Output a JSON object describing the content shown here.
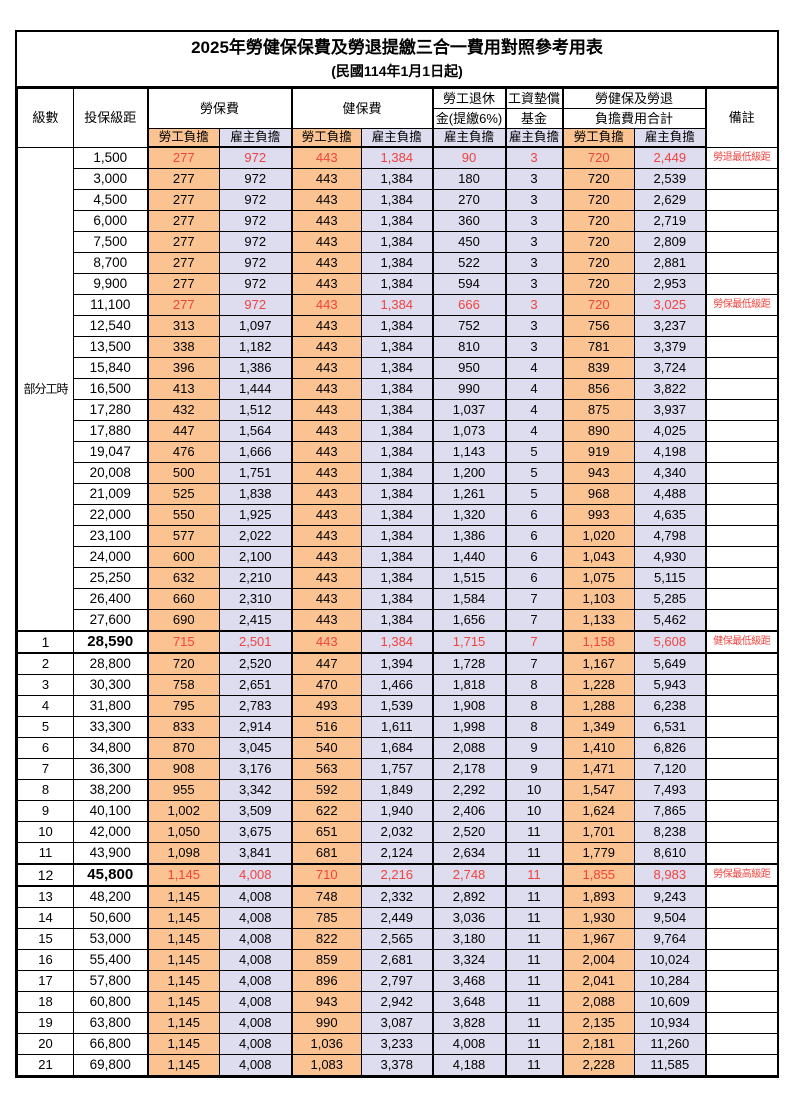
{
  "title": "2025年勞健保保費及勞退提繳三合一費用對照參考用表",
  "subtitle": "(民國114年1月1日起)",
  "header": {
    "level": "級數",
    "bracket": "投保級距",
    "labor": "勞保費",
    "health": "健保費",
    "pension_l1": "勞工退休",
    "pension_l2": "金(提繳6%)",
    "wage_l1": "工資墊償",
    "wage_l2": "基金",
    "total_l1": "勞健保及勞退",
    "total_l2": "負擔費用合計",
    "note": "備註",
    "employee": "勞工負擔",
    "employer": "雇主負擔"
  },
  "part_time": {
    "label": "部分工時",
    "rowspan": 23
  },
  "colors": {
    "employee_bg": "#FAC391",
    "employer_bg": "#DEDCEF",
    "highlight_text": "#F0433E",
    "border": "#000000"
  },
  "rows": [
    {
      "level": "",
      "bracket": "1,500",
      "values": [
        "277",
        "972",
        "443",
        "1,384",
        "90",
        "3",
        "720",
        "2,449"
      ],
      "note": "勞退最低級距",
      "highlight": true,
      "emphasis": false
    },
    {
      "level": "",
      "bracket": "3,000",
      "values": [
        "277",
        "972",
        "443",
        "1,384",
        "180",
        "3",
        "720",
        "2,539"
      ],
      "note": "",
      "highlight": false,
      "emphasis": false
    },
    {
      "level": "",
      "bracket": "4,500",
      "values": [
        "277",
        "972",
        "443",
        "1,384",
        "270",
        "3",
        "720",
        "2,629"
      ],
      "note": "",
      "highlight": false,
      "emphasis": false
    },
    {
      "level": "",
      "bracket": "6,000",
      "values": [
        "277",
        "972",
        "443",
        "1,384",
        "360",
        "3",
        "720",
        "2,719"
      ],
      "note": "",
      "highlight": false,
      "emphasis": false
    },
    {
      "level": "",
      "bracket": "7,500",
      "values": [
        "277",
        "972",
        "443",
        "1,384",
        "450",
        "3",
        "720",
        "2,809"
      ],
      "note": "",
      "highlight": false,
      "emphasis": false
    },
    {
      "level": "",
      "bracket": "8,700",
      "values": [
        "277",
        "972",
        "443",
        "1,384",
        "522",
        "3",
        "720",
        "2,881"
      ],
      "note": "",
      "highlight": false,
      "emphasis": false
    },
    {
      "level": "",
      "bracket": "9,900",
      "values": [
        "277",
        "972",
        "443",
        "1,384",
        "594",
        "3",
        "720",
        "2,953"
      ],
      "note": "",
      "highlight": false,
      "emphasis": false
    },
    {
      "level": "",
      "bracket": "11,100",
      "values": [
        "277",
        "972",
        "443",
        "1,384",
        "666",
        "3",
        "720",
        "3,025"
      ],
      "note": "勞保最低級距",
      "highlight": true,
      "emphasis": false
    },
    {
      "level": "",
      "bracket": "12,540",
      "values": [
        "313",
        "1,097",
        "443",
        "1,384",
        "752",
        "3",
        "756",
        "3,237"
      ],
      "note": "",
      "highlight": false,
      "emphasis": false
    },
    {
      "level": "",
      "bracket": "13,500",
      "values": [
        "338",
        "1,182",
        "443",
        "1,384",
        "810",
        "3",
        "781",
        "3,379"
      ],
      "note": "",
      "highlight": false,
      "emphasis": false
    },
    {
      "level": "",
      "bracket": "15,840",
      "values": [
        "396",
        "1,386",
        "443",
        "1,384",
        "950",
        "4",
        "839",
        "3,724"
      ],
      "note": "",
      "highlight": false,
      "emphasis": false
    },
    {
      "level": "",
      "bracket": "16,500",
      "values": [
        "413",
        "1,444",
        "443",
        "1,384",
        "990",
        "4",
        "856",
        "3,822"
      ],
      "note": "",
      "highlight": false,
      "emphasis": false
    },
    {
      "level": "",
      "bracket": "17,280",
      "values": [
        "432",
        "1,512",
        "443",
        "1,384",
        "1,037",
        "4",
        "875",
        "3,937"
      ],
      "note": "",
      "highlight": false,
      "emphasis": false
    },
    {
      "level": "",
      "bracket": "17,880",
      "values": [
        "447",
        "1,564",
        "443",
        "1,384",
        "1,073",
        "4",
        "890",
        "4,025"
      ],
      "note": "",
      "highlight": false,
      "emphasis": false
    },
    {
      "level": "",
      "bracket": "19,047",
      "values": [
        "476",
        "1,666",
        "443",
        "1,384",
        "1,143",
        "5",
        "919",
        "4,198"
      ],
      "note": "",
      "highlight": false,
      "emphasis": false
    },
    {
      "level": "",
      "bracket": "20,008",
      "values": [
        "500",
        "1,751",
        "443",
        "1,384",
        "1,200",
        "5",
        "943",
        "4,340"
      ],
      "note": "",
      "highlight": false,
      "emphasis": false
    },
    {
      "level": "",
      "bracket": "21,009",
      "values": [
        "525",
        "1,838",
        "443",
        "1,384",
        "1,261",
        "5",
        "968",
        "4,488"
      ],
      "note": "",
      "highlight": false,
      "emphasis": false
    },
    {
      "level": "",
      "bracket": "22,000",
      "values": [
        "550",
        "1,925",
        "443",
        "1,384",
        "1,320",
        "6",
        "993",
        "4,635"
      ],
      "note": "",
      "highlight": false,
      "emphasis": false
    },
    {
      "level": "",
      "bracket": "23,100",
      "values": [
        "577",
        "2,022",
        "443",
        "1,384",
        "1,386",
        "6",
        "1,020",
        "4,798"
      ],
      "note": "",
      "highlight": false,
      "emphasis": false
    },
    {
      "level": "",
      "bracket": "24,000",
      "values": [
        "600",
        "2,100",
        "443",
        "1,384",
        "1,440",
        "6",
        "1,043",
        "4,930"
      ],
      "note": "",
      "highlight": false,
      "emphasis": false
    },
    {
      "level": "",
      "bracket": "25,250",
      "values": [
        "632",
        "2,210",
        "443",
        "1,384",
        "1,515",
        "6",
        "1,075",
        "5,115"
      ],
      "note": "",
      "highlight": false,
      "emphasis": false
    },
    {
      "level": "",
      "bracket": "26,400",
      "values": [
        "660",
        "2,310",
        "443",
        "1,384",
        "1,584",
        "7",
        "1,103",
        "5,285"
      ],
      "note": "",
      "highlight": false,
      "emphasis": false
    },
    {
      "level": "",
      "bracket": "27,600",
      "values": [
        "690",
        "2,415",
        "443",
        "1,384",
        "1,656",
        "7",
        "1,133",
        "5,462"
      ],
      "note": "",
      "highlight": false,
      "emphasis": false
    },
    {
      "level": "1",
      "bracket": "28,590",
      "values": [
        "715",
        "2,501",
        "443",
        "1,384",
        "1,715",
        "7",
        "1,158",
        "5,608"
      ],
      "note": "健保最低級距",
      "highlight": true,
      "emphasis": true
    },
    {
      "level": "2",
      "bracket": "28,800",
      "values": [
        "720",
        "2,520",
        "447",
        "1,394",
        "1,728",
        "7",
        "1,167",
        "5,649"
      ],
      "note": "",
      "highlight": false,
      "emphasis": false
    },
    {
      "level": "3",
      "bracket": "30,300",
      "values": [
        "758",
        "2,651",
        "470",
        "1,466",
        "1,818",
        "8",
        "1,228",
        "5,943"
      ],
      "note": "",
      "highlight": false,
      "emphasis": false
    },
    {
      "level": "4",
      "bracket": "31,800",
      "values": [
        "795",
        "2,783",
        "493",
        "1,539",
        "1,908",
        "8",
        "1,288",
        "6,238"
      ],
      "note": "",
      "highlight": false,
      "emphasis": false
    },
    {
      "level": "5",
      "bracket": "33,300",
      "values": [
        "833",
        "2,914",
        "516",
        "1,611",
        "1,998",
        "8",
        "1,349",
        "6,531"
      ],
      "note": "",
      "highlight": false,
      "emphasis": false
    },
    {
      "level": "6",
      "bracket": "34,800",
      "values": [
        "870",
        "3,045",
        "540",
        "1,684",
        "2,088",
        "9",
        "1,410",
        "6,826"
      ],
      "note": "",
      "highlight": false,
      "emphasis": false
    },
    {
      "level": "7",
      "bracket": "36,300",
      "values": [
        "908",
        "3,176",
        "563",
        "1,757",
        "2,178",
        "9",
        "1,471",
        "7,120"
      ],
      "note": "",
      "highlight": false,
      "emphasis": false
    },
    {
      "level": "8",
      "bracket": "38,200",
      "values": [
        "955",
        "3,342",
        "592",
        "1,849",
        "2,292",
        "10",
        "1,547",
        "7,493"
      ],
      "note": "",
      "highlight": false,
      "emphasis": false
    },
    {
      "level": "9",
      "bracket": "40,100",
      "values": [
        "1,002",
        "3,509",
        "622",
        "1,940",
        "2,406",
        "10",
        "1,624",
        "7,865"
      ],
      "note": "",
      "highlight": false,
      "emphasis": false
    },
    {
      "level": "10",
      "bracket": "42,000",
      "values": [
        "1,050",
        "3,675",
        "651",
        "2,032",
        "2,520",
        "11",
        "1,701",
        "8,238"
      ],
      "note": "",
      "highlight": false,
      "emphasis": false
    },
    {
      "level": "11",
      "bracket": "43,900",
      "values": [
        "1,098",
        "3,841",
        "681",
        "2,124",
        "2,634",
        "11",
        "1,779",
        "8,610"
      ],
      "note": "",
      "highlight": false,
      "emphasis": false
    },
    {
      "level": "12",
      "bracket": "45,800",
      "values": [
        "1,145",
        "4,008",
        "710",
        "2,216",
        "2,748",
        "11",
        "1,855",
        "8,983"
      ],
      "note": "勞保最高級距",
      "highlight": true,
      "emphasis": true
    },
    {
      "level": "13",
      "bracket": "48,200",
      "values": [
        "1,145",
        "4,008",
        "748",
        "2,332",
        "2,892",
        "11",
        "1,893",
        "9,243"
      ],
      "note": "",
      "highlight": false,
      "emphasis": false
    },
    {
      "level": "14",
      "bracket": "50,600",
      "values": [
        "1,145",
        "4,008",
        "785",
        "2,449",
        "3,036",
        "11",
        "1,930",
        "9,504"
      ],
      "note": "",
      "highlight": false,
      "emphasis": false
    },
    {
      "level": "15",
      "bracket": "53,000",
      "values": [
        "1,145",
        "4,008",
        "822",
        "2,565",
        "3,180",
        "11",
        "1,967",
        "9,764"
      ],
      "note": "",
      "highlight": false,
      "emphasis": false
    },
    {
      "level": "16",
      "bracket": "55,400",
      "values": [
        "1,145",
        "4,008",
        "859",
        "2,681",
        "3,324",
        "11",
        "2,004",
        "10,024"
      ],
      "note": "",
      "highlight": false,
      "emphasis": false
    },
    {
      "level": "17",
      "bracket": "57,800",
      "values": [
        "1,145",
        "4,008",
        "896",
        "2,797",
        "3,468",
        "11",
        "2,041",
        "10,284"
      ],
      "note": "",
      "highlight": false,
      "emphasis": false
    },
    {
      "level": "18",
      "bracket": "60,800",
      "values": [
        "1,145",
        "4,008",
        "943",
        "2,942",
        "3,648",
        "11",
        "2,088",
        "10,609"
      ],
      "note": "",
      "highlight": false,
      "emphasis": false
    },
    {
      "level": "19",
      "bracket": "63,800",
      "values": [
        "1,145",
        "4,008",
        "990",
        "3,087",
        "3,828",
        "11",
        "2,135",
        "10,934"
      ],
      "note": "",
      "highlight": false,
      "emphasis": false
    },
    {
      "level": "20",
      "bracket": "66,800",
      "values": [
        "1,145",
        "4,008",
        "1,036",
        "3,233",
        "4,008",
        "11",
        "2,181",
        "11,260"
      ],
      "note": "",
      "highlight": false,
      "emphasis": false
    },
    {
      "level": "21",
      "bracket": "69,800",
      "values": [
        "1,145",
        "4,008",
        "1,083",
        "3,378",
        "4,188",
        "11",
        "2,228",
        "11,585"
      ],
      "note": "",
      "highlight": false,
      "emphasis": false
    }
  ]
}
